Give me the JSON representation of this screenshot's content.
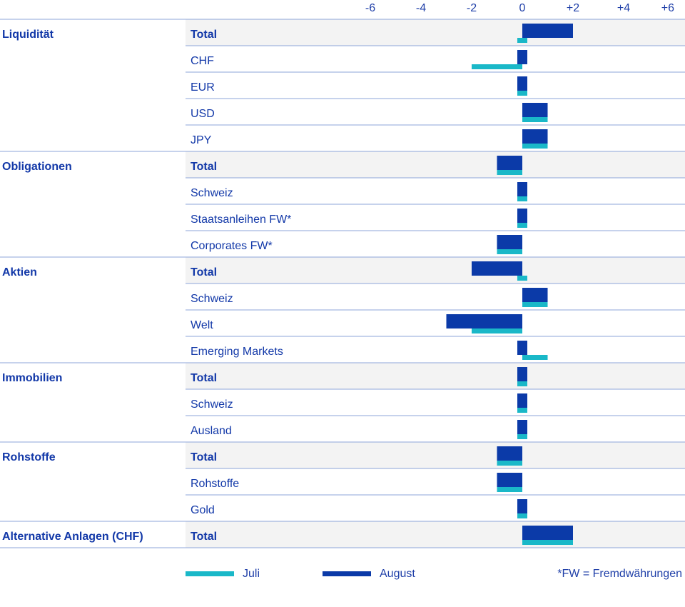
{
  "colors": {
    "juli": "#1ab8c8",
    "august": "#0b3aa8",
    "text": "#1238a8",
    "line": "#8ea4d8",
    "band": "#f3f3f3"
  },
  "legend": {
    "juli": "Juli",
    "august": "August",
    "note": "*FW = Fremdwährungen"
  },
  "chart_data": {
    "type": "bar",
    "orientation": "horizontal",
    "title": "",
    "xlim": [
      -6,
      6
    ],
    "x_ticks": [
      "-6",
      "-4",
      "-2",
      "0",
      "+2",
      "+4",
      "+6"
    ],
    "series_names": [
      "Juli",
      "August"
    ],
    "groups": [
      {
        "name": "Liquidität",
        "rows": [
          {
            "label": "Total",
            "bold": true,
            "juli": 0,
            "august": 2
          },
          {
            "label": "CHF",
            "bold": false,
            "juli": -2,
            "august": 0
          },
          {
            "label": "EUR",
            "bold": false,
            "juli": 0,
            "august": 0
          },
          {
            "label": "USD",
            "bold": false,
            "juli": 1,
            "august": 1
          },
          {
            "label": "JPY",
            "bold": false,
            "juli": 1,
            "august": 1
          }
        ]
      },
      {
        "name": "Obligationen",
        "rows": [
          {
            "label": "Total",
            "bold": true,
            "juli": -1,
            "august": -1
          },
          {
            "label": "Schweiz",
            "bold": false,
            "juli": 0,
            "august": 0
          },
          {
            "label": "Staatsanleihen FW*",
            "bold": false,
            "juli": 0,
            "august": 0
          },
          {
            "label": "Corporates FW*",
            "bold": false,
            "juli": -1,
            "august": -1
          }
        ]
      },
      {
        "name": "Aktien",
        "rows": [
          {
            "label": "Total",
            "bold": true,
            "juli": 0,
            "august": -2
          },
          {
            "label": "Schweiz",
            "bold": false,
            "juli": 1,
            "august": 1
          },
          {
            "label": "Welt",
            "bold": false,
            "juli": -2,
            "august": -3
          },
          {
            "label": "Emerging Markets",
            "bold": false,
            "juli": 1,
            "august": 0
          }
        ]
      },
      {
        "name": "Immobilien",
        "rows": [
          {
            "label": "Total",
            "bold": true,
            "juli": 0,
            "august": 0
          },
          {
            "label": "Schweiz",
            "bold": false,
            "juli": 0,
            "august": 0
          },
          {
            "label": "Ausland",
            "bold": false,
            "juli": 0,
            "august": 0
          }
        ]
      },
      {
        "name": "Rohstoffe",
        "rows": [
          {
            "label": "Total",
            "bold": true,
            "juli": -1,
            "august": -1
          },
          {
            "label": "Rohstoffe",
            "bold": false,
            "juli": -1,
            "august": -1
          },
          {
            "label": "Gold",
            "bold": false,
            "juli": 0,
            "august": 0
          }
        ]
      },
      {
        "name": "Alternative Anlagen (CHF)",
        "rows": [
          {
            "label": "Total",
            "bold": true,
            "juli": 2,
            "august": 2
          }
        ]
      }
    ]
  }
}
